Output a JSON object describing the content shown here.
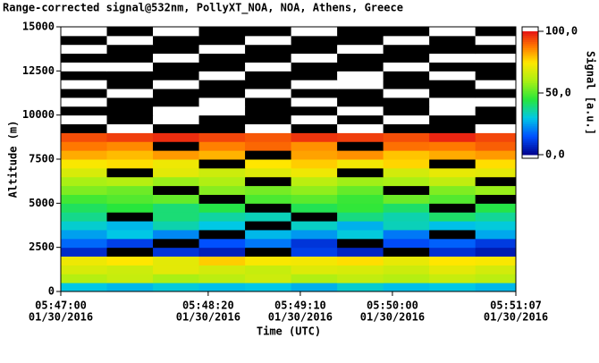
{
  "chart_data": {
    "type": "heatmap",
    "title": "Range-corrected signal@532nm, PollyXT_NOA, NOA, Athens, Greece",
    "x_label": "Time (UTC)",
    "y_label": "Altitude (m)",
    "colorbar_label": "Signal [a.u.]",
    "xlim": [
      "05:47:00",
      "05:51:07"
    ],
    "xticks": [
      "05:47:00",
      "05:48:20",
      "05:49:10",
      "05:50:00",
      "05:51:07"
    ],
    "xtick_dates": [
      "01/30/2016",
      "01/30/2016",
      "01/30/2016",
      "01/30/2016",
      "01/30/2016"
    ],
    "ylim": [
      0,
      15000
    ],
    "yticks": [
      0,
      2500,
      5000,
      7500,
      10000,
      12500,
      15000
    ],
    "clim": [
      0,
      100
    ],
    "cticks": [
      {
        "value": 0,
        "label": "0,0"
      },
      {
        "value": 50,
        "label": "50,0"
      },
      {
        "value": 100,
        "label": "100,0"
      }
    ],
    "x": [
      "05:47:00",
      "05:47:25",
      "05:47:50",
      "05:48:15",
      "05:48:40",
      "05:49:05",
      "05:49:30",
      "05:49:55",
      "05:50:20",
      "05:50:45"
    ],
    "y": [
      0,
      500,
      1000,
      1500,
      2000,
      2500,
      3000,
      3500,
      4000,
      4500,
      5000,
      5500,
      6000,
      6500,
      7000,
      7500,
      8000,
      8500,
      9000,
      9500,
      10000,
      10500,
      11000,
      11500,
      12000,
      12500,
      13000,
      13500,
      14000,
      14500
    ],
    "z": [
      [
        30,
        28,
        31,
        29,
        30,
        27,
        32,
        29,
        30,
        28
      ],
      [
        62,
        65,
        60,
        63,
        66,
        61,
        64,
        62,
        65,
        63
      ],
      [
        68,
        66,
        70,
        67,
        65,
        69,
        68,
        66,
        70,
        67
      ],
      [
        72,
        75,
        70,
        78,
        74,
        73,
        76,
        71,
        75,
        74
      ],
      [
        8,
        -5,
        10,
        6,
        -8,
        12,
        7,
        -4,
        9,
        5
      ],
      [
        18,
        12,
        -3,
        15,
        20,
        10,
        -6,
        14,
        17,
        11
      ],
      [
        25,
        30,
        22,
        -2,
        28,
        24,
        31,
        20,
        -5,
        26
      ],
      [
        32,
        28,
        35,
        30,
        -4,
        33,
        27,
        34,
        29,
        31
      ],
      [
        38,
        -3,
        40,
        36,
        34,
        -6,
        39,
        35,
        41,
        37
      ],
      [
        42,
        45,
        40,
        44,
        -2,
        43,
        46,
        41,
        -5,
        44
      ],
      [
        48,
        50,
        52,
        -4,
        49,
        51,
        47,
        53,
        50,
        -3
      ],
      [
        55,
        53,
        -2,
        56,
        54,
        57,
        52,
        -5,
        55,
        58
      ],
      [
        60,
        62,
        58,
        61,
        -3,
        63,
        59,
        60,
        64,
        -2
      ],
      [
        68,
        -4,
        70,
        66,
        69,
        72,
        -3,
        67,
        71,
        70
      ],
      [
        74,
        76,
        72,
        -2,
        75,
        78,
        73,
        77,
        -4,
        76
      ],
      [
        82,
        80,
        84,
        81,
        -3,
        83,
        85,
        79,
        82,
        84
      ],
      [
        88,
        86,
        -5,
        87,
        90,
        85,
        -2,
        89,
        88,
        91
      ],
      [
        93,
        95,
        97,
        94,
        92,
        96,
        95,
        93,
        98,
        94
      ],
      [
        -10,
        110,
        -10,
        -10,
        110,
        -10,
        110,
        -10,
        -10,
        110
      ],
      [
        110,
        -10,
        110,
        -10,
        -10,
        110,
        -10,
        110,
        -10,
        -10
      ],
      [
        -10,
        -10,
        110,
        110,
        -10,
        -10,
        110,
        -10,
        110,
        -10
      ],
      [
        110,
        -10,
        -10,
        110,
        -10,
        110,
        -10,
        -10,
        110,
        110
      ],
      [
        -10,
        110,
        -10,
        -10,
        110,
        -10,
        -10,
        110,
        -10,
        -10
      ],
      [
        110,
        -10,
        110,
        -10,
        -10,
        110,
        110,
        -10,
        -10,
        110
      ],
      [
        -10,
        -10,
        -10,
        110,
        -10,
        -10,
        110,
        -10,
        110,
        -10
      ],
      [
        110,
        110,
        -10,
        -10,
        110,
        -10,
        -10,
        110,
        -10,
        -10
      ],
      [
        -10,
        -10,
        110,
        -10,
        -10,
        110,
        -10,
        -10,
        110,
        110
      ],
      [
        110,
        -10,
        -10,
        110,
        -10,
        -10,
        110,
        -10,
        -10,
        -10
      ],
      [
        -10,
        110,
        -10,
        -10,
        110,
        -10,
        -10,
        110,
        -10,
        110
      ],
      [
        110,
        -10,
        110,
        -10,
        -10,
        110,
        -10,
        -10,
        110,
        -10
      ]
    ]
  }
}
